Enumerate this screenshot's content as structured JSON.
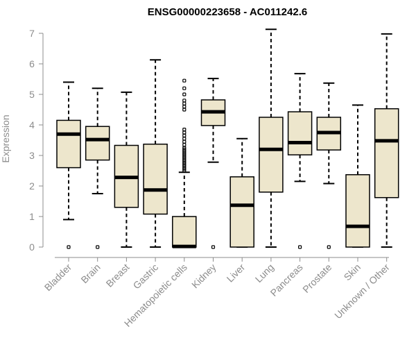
{
  "chart_data": {
    "type": "boxplot",
    "title": "ENSG00000223658 - AC011242.6",
    "xlabel": "",
    "ylabel": "Expression",
    "ylim": [
      0,
      7
    ],
    "yticks": [
      0,
      1,
      2,
      3,
      4,
      5,
      6,
      7
    ],
    "box_fill": "#ede6cc",
    "categories": [
      "Bladder",
      "Brain",
      "Breast",
      "Gastric",
      "Hematopoietic cells",
      "Kidney",
      "Liver",
      "Lung",
      "Pancreas",
      "Prostate",
      "Skin",
      "Unknown / Other"
    ],
    "boxes": [
      {
        "name": "Bladder",
        "whislo": 0.9,
        "q1": 2.6,
        "med": 3.7,
        "q3": 4.15,
        "whishi": 5.4,
        "fliers": [
          0
        ]
      },
      {
        "name": "Brain",
        "whislo": 1.75,
        "q1": 2.85,
        "med": 3.52,
        "q3": 3.95,
        "whishi": 5.2,
        "fliers": [
          0
        ]
      },
      {
        "name": "Breast",
        "whislo": 0,
        "q1": 1.3,
        "med": 2.28,
        "q3": 3.33,
        "whishi": 5.07,
        "fliers": []
      },
      {
        "name": "Gastric",
        "whislo": 0,
        "q1": 1.08,
        "med": 1.87,
        "q3": 3.37,
        "whishi": 6.13,
        "fliers": []
      },
      {
        "name": "Hematopoietic cells",
        "whislo": 0,
        "q1": 0,
        "med": 0.02,
        "q3": 1.0,
        "whishi": 2.45,
        "fliers": [
          2.5,
          2.55,
          2.6,
          2.65,
          2.7,
          2.75,
          2.8,
          2.85,
          2.9,
          2.95,
          3.0,
          3.05,
          3.1,
          3.15,
          3.2,
          3.25,
          3.35,
          3.45,
          3.55,
          3.65,
          3.75,
          3.85,
          4.5,
          4.6,
          4.7,
          4.8,
          5.0,
          5.2,
          5.45
        ]
      },
      {
        "name": "Kidney",
        "whislo": 2.78,
        "q1": 3.98,
        "med": 4.43,
        "q3": 4.82,
        "whishi": 5.52,
        "fliers": [
          0
        ]
      },
      {
        "name": "Liver",
        "whislo": 0,
        "q1": 0,
        "med": 1.37,
        "q3": 2.3,
        "whishi": 3.55,
        "fliers": []
      },
      {
        "name": "Lung",
        "whislo": 0,
        "q1": 1.8,
        "med": 3.2,
        "q3": 4.25,
        "whishi": 7.13,
        "fliers": []
      },
      {
        "name": "Pancreas",
        "whislo": 2.15,
        "q1": 3.02,
        "med": 3.42,
        "q3": 4.43,
        "whishi": 5.68,
        "fliers": [
          0
        ]
      },
      {
        "name": "Prostate",
        "whislo": 2.08,
        "q1": 3.18,
        "med": 3.75,
        "q3": 4.25,
        "whishi": 5.37,
        "fliers": [
          0
        ]
      },
      {
        "name": "Skin",
        "whislo": 0,
        "q1": 0,
        "med": 0.68,
        "q3": 2.37,
        "whishi": 4.65,
        "fliers": []
      },
      {
        "name": "Unknown / Other",
        "whislo": 0,
        "q1": 1.62,
        "med": 3.48,
        "q3": 4.53,
        "whishi": 6.98,
        "fliers": []
      }
    ]
  }
}
